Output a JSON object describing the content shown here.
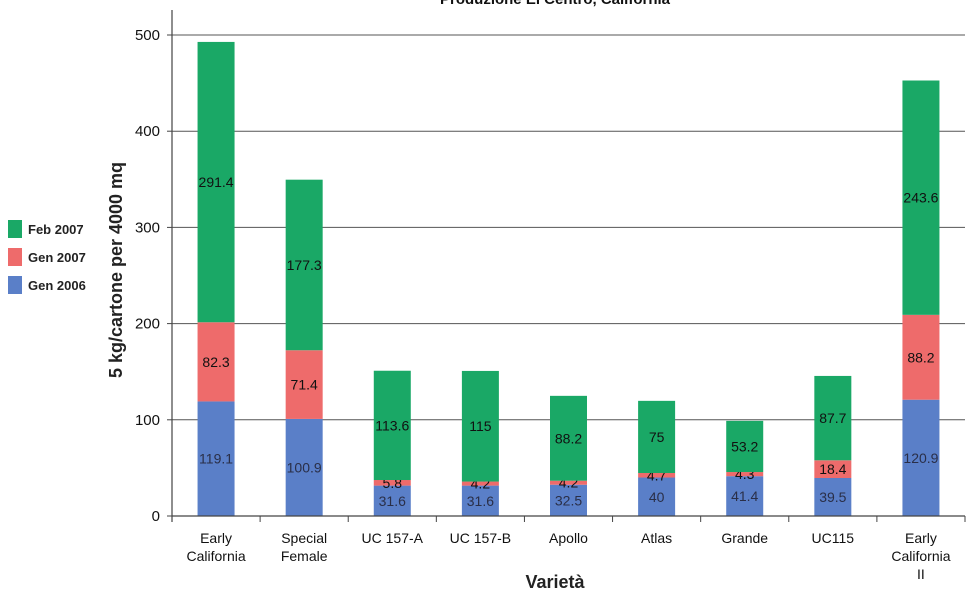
{
  "chart_data": {
    "type": "bar",
    "stacked": true,
    "title": "Produzione El Centro, California",
    "xlabel": "Varietà",
    "ylabel": "5 kg/cartone per 4000 mq",
    "ylim": [
      0,
      500
    ],
    "yticks": [
      0,
      100,
      200,
      300,
      400,
      500
    ],
    "grid": true,
    "legend_position": "left",
    "categories": [
      [
        "Early",
        "California"
      ],
      [
        "Special",
        "Female"
      ],
      [
        "UC 157-A"
      ],
      [
        "UC 157-B"
      ],
      [
        "Apollo"
      ],
      [
        "Atlas"
      ],
      [
        "Grande"
      ],
      [
        "UC115"
      ],
      [
        "Early",
        "California",
        "II"
      ]
    ],
    "series": [
      {
        "name": "Gen 2006",
        "color": "#5a7fc8",
        "values": [
          119.1,
          100.9,
          31.6,
          31.6,
          32.5,
          40,
          41.4,
          39.5,
          120.9
        ]
      },
      {
        "name": "Gen 2007",
        "color": "#ee6b6b",
        "values": [
          82.3,
          71.4,
          5.8,
          4.2,
          4.2,
          4.7,
          4.3,
          18.4,
          88.2
        ]
      },
      {
        "name": "Feb 2007",
        "color": "#1aa866",
        "values": [
          291.4,
          177.3,
          113.6,
          115,
          88.2,
          75,
          53.2,
          87.7,
          243.6
        ]
      }
    ]
  }
}
